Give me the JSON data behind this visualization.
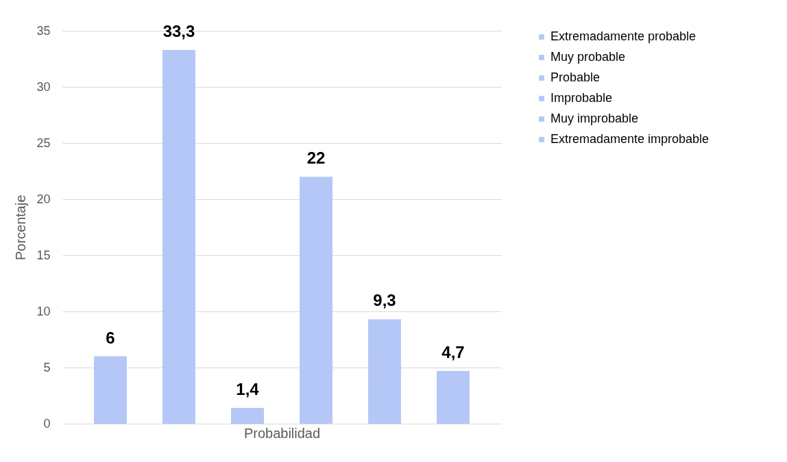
{
  "chart_data": {
    "type": "bar",
    "xlabel": "Probabilidad",
    "ylabel": "Porcentaje",
    "categories": [
      null
    ],
    "series": [
      {
        "name": "Extremadamente probable",
        "color": "#b4c7f7",
        "values": [
          6
        ],
        "value_labels": [
          "6"
        ]
      },
      {
        "name": "Muy probable",
        "color": "#b4c7f7",
        "values": [
          33.3
        ],
        "value_labels": [
          "33,3"
        ]
      },
      {
        "name": "Probable",
        "color": "#b4c7f7",
        "values": [
          1.4
        ],
        "value_labels": [
          "1,4"
        ]
      },
      {
        "name": "Improbable",
        "color": "#b4c7f7",
        "values": [
          22
        ],
        "value_labels": [
          "22"
        ]
      },
      {
        "name": "Muy improbable",
        "color": "#b4c7f7",
        "values": [
          9.3
        ],
        "value_labels": [
          "9,3"
        ]
      },
      {
        "name": "Extremadamente improbable",
        "color": "#b4c7f7",
        "values": [
          4.7
        ],
        "value_labels": [
          "4,7"
        ]
      }
    ],
    "ylim": [
      0,
      35
    ],
    "yticks": [
      0,
      5,
      10,
      15,
      20,
      25,
      30,
      35
    ],
    "grid": "y",
    "legend": "right"
  }
}
